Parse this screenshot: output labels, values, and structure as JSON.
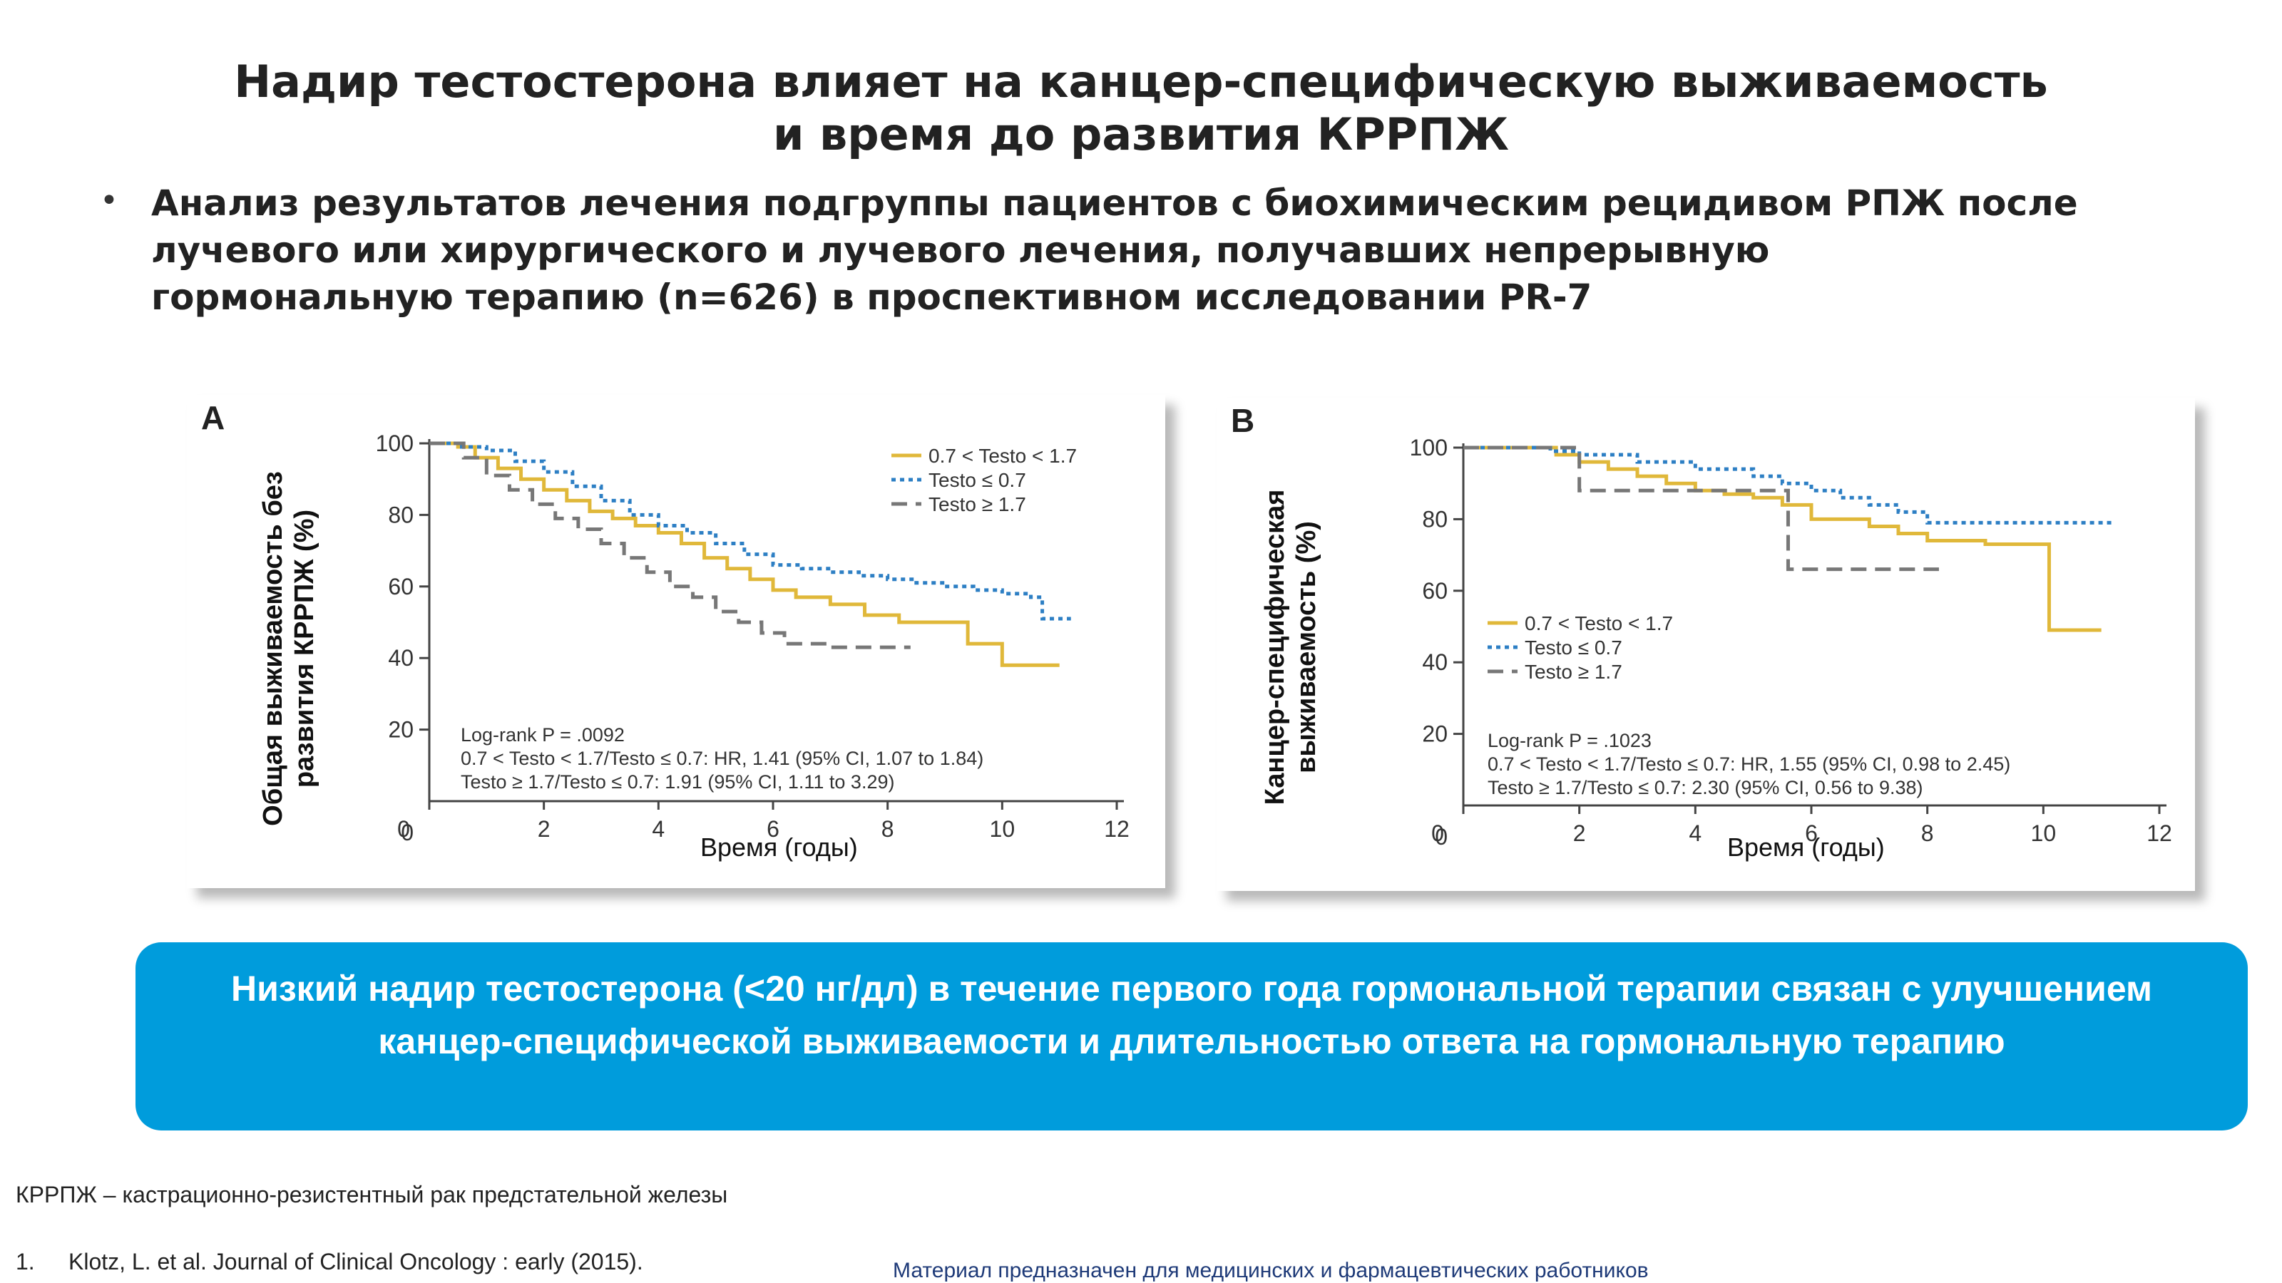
{
  "slide": {
    "title": [
      "Надир тестостерона влияет на канцер-специфическую выживаемость",
      "и время до развития КРРПЖ"
    ],
    "bullet_symbol": "•",
    "bullet": [
      "Анализ результатов лечения подгруппы пациентов с биохимическим рецидивом РПЖ после",
      "лучевого или хирургического и лучевого лечения, получавших непрерывную",
      "гормональную терапию (n=626) в проспективном исследовании PR-7"
    ],
    "callout": [
      "Низкий надир тестостерона (<20 нг/дл) в течение первого года гормональной терапии связан с улучшением",
      "канцер-специфической выживаемости и длительностью ответа на гормональную терапию"
    ],
    "callout_color": "#009cdc",
    "footnote_abbr": "КРРПЖ – кастрационно-резистентный рак предстательной железы",
    "ref_number": "1.",
    "reference": "Klotz, L. et al. Journal of Clinical Oncology : early (2015).",
    "disclaimer": "Материал предназначен для медицинских и фармацевтических работников"
  },
  "chart_data": [
    {
      "type": "line",
      "panel_label": "A",
      "ylabel_overlay": [
        "Общая выживаемость без",
        "развития КРРПЖ (%)"
      ],
      "xlabel_overlay": "Время (годы)",
      "xticks": [
        "0",
        "2",
        "4",
        "6",
        "8",
        "10",
        "12"
      ],
      "yticks": [
        "100",
        "80",
        "60",
        "40",
        "20",
        "0"
      ],
      "xlim": [
        0,
        12
      ],
      "ylim": [
        0,
        100
      ],
      "legend_position": "top-right",
      "series": [
        {
          "name": "0.7 < Testo < 1.7",
          "color": "#e0b83a",
          "style": "solid",
          "x": [
            0,
            0.5,
            0.8,
            1.2,
            1.6,
            2,
            2.4,
            2.8,
            3.2,
            3.6,
            4,
            4.4,
            4.8,
            5.2,
            5.6,
            6,
            6.4,
            7,
            7.6,
            8.2,
            9.4,
            10,
            11
          ],
          "y": [
            100,
            99,
            96,
            93,
            90,
            87,
            84,
            81,
            79,
            77,
            75,
            72,
            68,
            65,
            62,
            59,
            57,
            55,
            52,
            50,
            44,
            38,
            38
          ]
        },
        {
          "name": "Testo ≤ 0.7",
          "color": "#2d7fc4",
          "style": "dotted",
          "x": [
            0,
            0.5,
            1,
            1.5,
            2,
            2.5,
            3,
            3.5,
            4,
            4.5,
            5,
            5.5,
            6,
            6.5,
            7,
            7.5,
            8,
            8.5,
            9,
            9.5,
            10,
            10.5,
            10.7,
            11.2
          ],
          "y": [
            100,
            99,
            98,
            95,
            92,
            88,
            84,
            80,
            77,
            75,
            72,
            69,
            66,
            65,
            64,
            63,
            62,
            61,
            60,
            59,
            58,
            57,
            51,
            51
          ]
        },
        {
          "name": "Testo ≥ 1.7",
          "color": "#777777",
          "style": "dashed",
          "x": [
            0,
            0.6,
            1,
            1.4,
            1.8,
            2.2,
            2.6,
            3,
            3.4,
            3.8,
            4.2,
            4.6,
            5,
            5.4,
            5.8,
            6.2,
            7,
            8.4
          ],
          "y": [
            100,
            96,
            91,
            87,
            83,
            79,
            76,
            72,
            68,
            64,
            60,
            57,
            53,
            50,
            47,
            44,
            43,
            43
          ]
        }
      ],
      "annotation": [
        "Log-rank P = .0092",
        "0.7 < Testo < 1.7/Testo ≤ 0.7: HR, 1.41 (95% CI, 1.07 to 1.84)",
        "Testo ≥ 1.7/Testo ≤ 0.7: 1.91 (95% CI, 1.11 to 3.29)"
      ]
    },
    {
      "type": "line",
      "panel_label": "B",
      "ylabel_overlay": [
        "Канцер-специфическая",
        "выживаемость (%)"
      ],
      "xlabel_overlay": "Время (годы)",
      "xticks": [
        "0",
        "2",
        "4",
        "6",
        "8",
        "10",
        "12"
      ],
      "yticks": [
        "100",
        "80",
        "60",
        "40",
        "20",
        "0"
      ],
      "xlim": [
        0,
        12
      ],
      "ylim": [
        0,
        100
      ],
      "legend_position": "center-left",
      "series": [
        {
          "name": "0.7 < Testo < 1.7",
          "color": "#e0b83a",
          "style": "solid",
          "x": [
            0,
            1.6,
            2,
            2.5,
            3,
            3.5,
            4,
            4.5,
            5,
            5.5,
            6,
            7,
            7.5,
            8,
            9,
            10,
            10.1,
            11
          ],
          "y": [
            100,
            98,
            96,
            94,
            92,
            90,
            88,
            87,
            86,
            84,
            80,
            78,
            76,
            74,
            73,
            73,
            49,
            49
          ]
        },
        {
          "name": "Testo ≤ 0.7",
          "color": "#2d7fc4",
          "style": "dotted",
          "x": [
            0,
            1.5,
            2,
            3,
            4,
            5,
            5.5,
            6,
            6.5,
            7,
            7.5,
            8,
            9,
            10,
            11.2
          ],
          "y": [
            100,
            99,
            98,
            96,
            94,
            92,
            90,
            88,
            86,
            84,
            82,
            79,
            79,
            79,
            79
          ]
        },
        {
          "name": "Testo ≥ 1.7",
          "color": "#777777",
          "style": "dashed",
          "x": [
            0,
            1.9,
            2,
            5.4,
            5.6,
            8.2
          ],
          "y": [
            100,
            100,
            88,
            88,
            66,
            66
          ]
        }
      ],
      "annotation": [
        "Log-rank P = .1023",
        "0.7 < Testo < 1.7/Testo ≤ 0.7: HR, 1.55 (95% CI, 0.98 to 2.45)",
        "Testo ≥ 1.7/Testo ≤ 0.7: 2.30 (95% CI, 0.56 to 9.38)"
      ]
    }
  ]
}
